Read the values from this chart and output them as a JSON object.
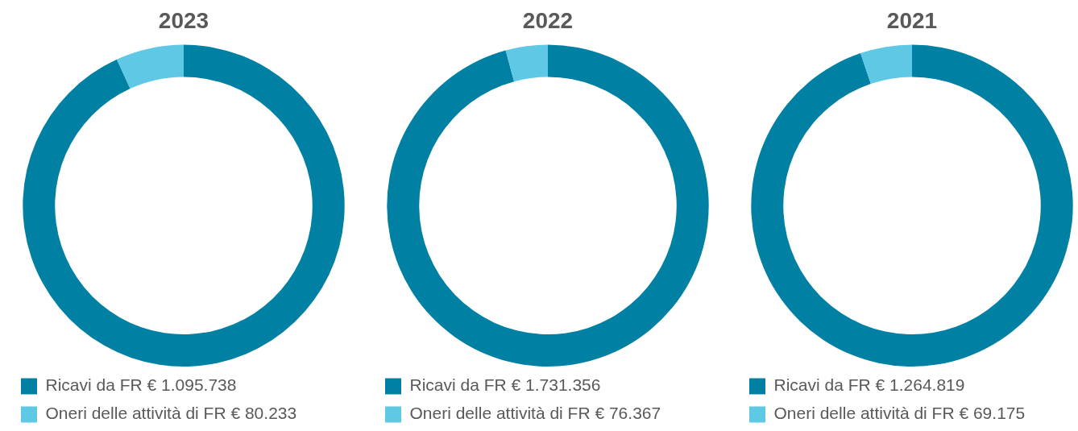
{
  "chart_data": [
    {
      "type": "donut",
      "title": "2023",
      "categories": [
        "Ricavi da FR € 1.095.738",
        "Oneri delle attività di FR € 80.233"
      ],
      "values": [
        1095738,
        80233
      ],
      "colors": [
        "#0080a3",
        "#5ec8e5"
      ],
      "legend": "bottom"
    },
    {
      "type": "donut",
      "title": "2022",
      "categories": [
        "Ricavi da FR € 1.731.356",
        "Oneri delle attività di FR € 76.367"
      ],
      "values": [
        1731356,
        76367
      ],
      "colors": [
        "#0080a3",
        "#5ec8e5"
      ],
      "legend": "bottom"
    },
    {
      "type": "donut",
      "title": "2021",
      "categories": [
        "Ricavi da FR € 1.264.819",
        "Oneri delle attività di FR € 69.175"
      ],
      "values": [
        1264819,
        69175
      ],
      "colors": [
        "#0080a3",
        "#5ec8e5"
      ],
      "legend": "bottom"
    }
  ]
}
